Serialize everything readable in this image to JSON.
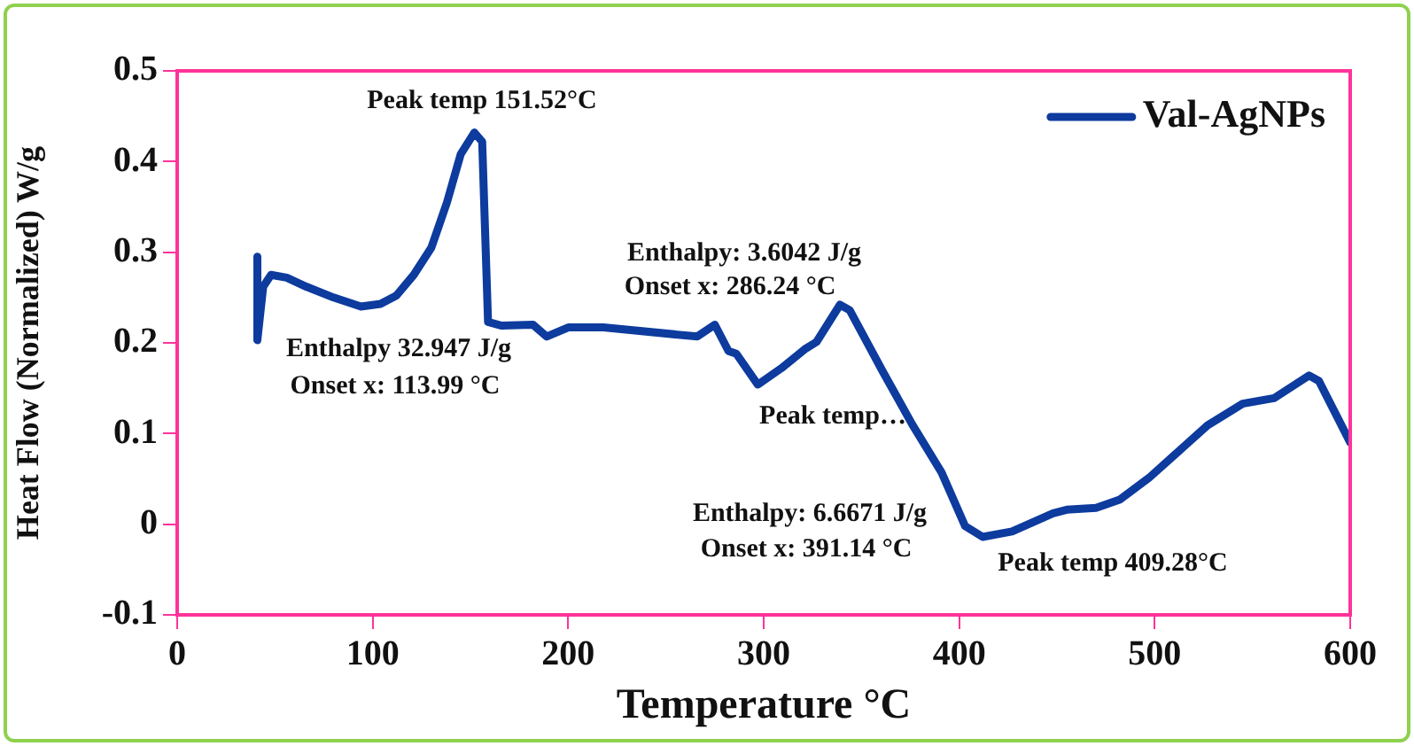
{
  "chart_data": {
    "type": "line",
    "xlabel": "Temperature °C",
    "ylabel": "Heat Flow (Normalized) W/g",
    "xlim": [
      0,
      600
    ],
    "xticks": [
      0,
      100,
      200,
      300,
      400,
      500,
      600
    ],
    "ylim": [
      -0.1,
      0.5
    ],
    "yticks": [
      -0.1,
      0,
      0.1,
      0.2,
      0.3,
      0.4,
      0.5
    ],
    "grid": false,
    "legend": "top right",
    "marker": "none",
    "line_style": "solid",
    "series": [
      {
        "name": "Val-AgNPs",
        "color": "#0d3b9e",
        "x": [
          41,
          41,
          44,
          48,
          56,
          66,
          80,
          94,
          104,
          112,
          121,
          130,
          138,
          145,
          152,
          156,
          159,
          166,
          182,
          189,
          200,
          218,
          266,
          275,
          282,
          286,
          297,
          309,
          321,
          327,
          339,
          344,
          361,
          376,
          391,
          403,
          412,
          427,
          448,
          455,
          470,
          482,
          497,
          512,
          527,
          545,
          561,
          579,
          584,
          600
        ],
        "values": [
          0.295,
          0.203,
          0.262,
          0.275,
          0.272,
          0.262,
          0.25,
          0.24,
          0.243,
          0.252,
          0.275,
          0.305,
          0.355,
          0.408,
          0.432,
          0.422,
          0.223,
          0.219,
          0.22,
          0.207,
          0.217,
          0.217,
          0.207,
          0.22,
          0.191,
          0.188,
          0.154,
          0.172,
          0.193,
          0.201,
          0.242,
          0.236,
          0.168,
          0.11,
          0.057,
          -0.002,
          -0.014,
          -0.008,
          0.012,
          0.016,
          0.018,
          0.027,
          0.051,
          0.08,
          0.109,
          0.133,
          0.139,
          0.164,
          0.158,
          0.09
        ]
      }
    ],
    "annotations": [
      "Peak temp 151.52°C",
      "Enthalpy 32.947 J/g",
      "Onset x: 113.99 °C",
      "Enthalpy: 3.6042 J/g",
      "Onset x: 286.24 °C",
      "Peak temp…",
      "Enthalpy: 6.6671 J/g",
      "Onset x: 391.14 °C",
      "Peak temp 409.28°C"
    ]
  }
}
